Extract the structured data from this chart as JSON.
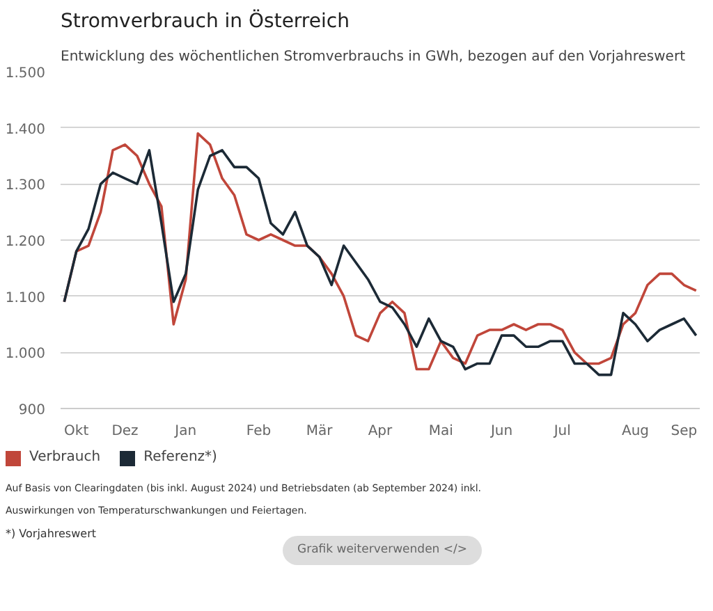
{
  "chart_data": {
    "type": "line",
    "title": "Stromverbrauch in Österreich",
    "subtitle": "Entwicklung des wöchentlichen Stromverbrauchs in GWh, bezogen auf den Vorjahreswert",
    "categories": [
      null,
      "Okt",
      null,
      null,
      null,
      "Dez",
      null,
      null,
      null,
      null,
      "Jan",
      null,
      null,
      null,
      null,
      null,
      "Feb",
      null,
      null,
      null,
      null,
      "Mär",
      null,
      null,
      null,
      null,
      "Apr",
      null,
      null,
      null,
      null,
      "Mai",
      null,
      null,
      null,
      null,
      "Jun",
      null,
      null,
      null,
      null,
      "Jul",
      null,
      null,
      null,
      null,
      null,
      "Aug",
      null,
      null,
      null,
      "Sep",
      null
    ],
    "series": [
      {
        "name": "Verbrauch",
        "color": "#c0463a",
        "values": [
          1090,
          1180,
          1190,
          1250,
          1360,
          1370,
          1350,
          1300,
          1260,
          1050,
          1130,
          1390,
          1370,
          1310,
          1280,
          1210,
          1200,
          1210,
          1200,
          1190,
          1190,
          1170,
          1140,
          1100,
          1030,
          1020,
          1070,
          1090,
          1070,
          970,
          970,
          1020,
          990,
          980,
          1030,
          1040,
          1040,
          1050,
          1040,
          1050,
          1050,
          1040,
          1000,
          980,
          980,
          990,
          1050,
          1070,
          1120,
          1140,
          1140,
          1120,
          1110
        ]
      },
      {
        "name": "Referenz*)",
        "color": "#1c2a36",
        "values": [
          1090,
          1180,
          1220,
          1300,
          1320,
          1310,
          1300,
          1360,
          1230,
          1090,
          1140,
          1290,
          1350,
          1360,
          1330,
          1330,
          1310,
          1230,
          1210,
          1250,
          1190,
          1170,
          1120,
          1190,
          1160,
          1130,
          1090,
          1080,
          1050,
          1010,
          1060,
          1020,
          1010,
          970,
          980,
          980,
          1030,
          1030,
          1010,
          1010,
          1020,
          1020,
          980,
          980,
          960,
          960,
          1070,
          1050,
          1020,
          1040,
          1050,
          1060,
          1030
        ]
      }
    ],
    "ylim": [
      900,
      1500
    ],
    "yticks": [
      900,
      {
        "value": 1000,
        "label": "1.000"
      },
      {
        "value": 1100,
        "label": "1.100"
      },
      {
        "value": 1200,
        "label": "1.200"
      },
      {
        "value": 1300,
        "label": "1.300"
      },
      {
        "value": 1400,
        "label": "1.400"
      },
      {
        "value": 1500,
        "label": "1.500"
      }
    ],
    "grid": "y",
    "legend": "bottom left",
    "line_style": "solid",
    "annotations": [
      "Auf Basis von Clearingdaten (bis inkl. August 2024) und Betriebsdaten (ab September 2024) inkl.",
      "Auswirkungen von Temperaturschwankungen und Feiertagen.",
      "*) Vorjahreswert",
      "Grafik weiterverwenden </>"
    ]
  }
}
